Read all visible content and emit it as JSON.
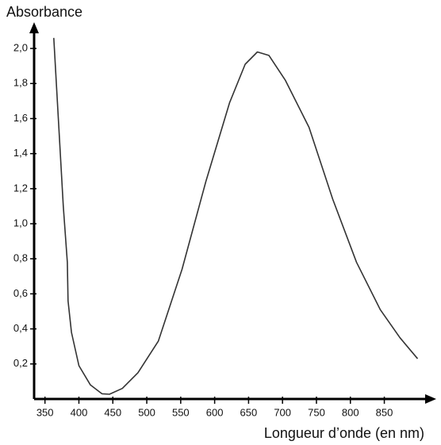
{
  "chart_data": {
    "type": "line",
    "y_label": "Absorbance",
    "x_label": "Longueur d’onde (en nm)",
    "xlim": [
      334,
      923
    ],
    "ylim": [
      0,
      2.1
    ],
    "xticks": [
      350,
      400,
      450,
      500,
      550,
      600,
      650,
      700,
      750,
      800,
      850
    ],
    "yticks": [
      {
        "value": 0.2,
        "label": "0,2"
      },
      {
        "value": 0.4,
        "label": "0,4"
      },
      {
        "value": 0.6,
        "label": "0,6"
      },
      {
        "value": 0.8,
        "label": "0,8"
      },
      {
        "value": 1.0,
        "label": "1,0"
      },
      {
        "value": 1.2,
        "label": "1,2"
      },
      {
        "value": 1.4,
        "label": "1,4"
      },
      {
        "value": 1.6,
        "label": "1,6"
      },
      {
        "value": 1.8,
        "label": "1,8"
      },
      {
        "value": 2.0,
        "label": "2,0"
      }
    ],
    "grid": false,
    "color": "#333333",
    "x": [
      363,
      377,
      383,
      384,
      389,
      400,
      417,
      434,
      445,
      464,
      487,
      517,
      552,
      587,
      622,
      645,
      663,
      680,
      704,
      739,
      774,
      809,
      844,
      873,
      899
    ],
    "values": [
      2.06,
      1.1,
      0.78,
      0.56,
      0.38,
      0.19,
      0.08,
      0.03,
      0.027,
      0.06,
      0.15,
      0.33,
      0.74,
      1.24,
      1.69,
      1.91,
      1.98,
      1.96,
      1.82,
      1.55,
      1.14,
      0.78,
      0.51,
      0.35,
      0.23
    ]
  }
}
